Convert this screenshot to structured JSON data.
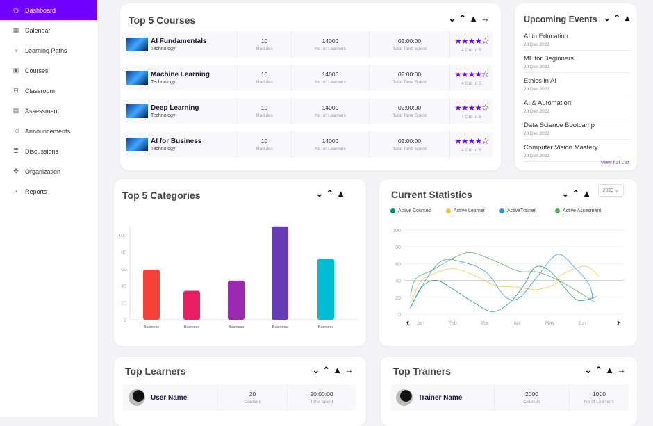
{
  "sidebar": {
    "items": [
      {
        "label": "Dashboard",
        "icon": "dashboard-icon",
        "glyph": "◷"
      },
      {
        "label": "Calendar",
        "icon": "calendar-icon",
        "glyph": "▦"
      },
      {
        "label": "Learning Paths",
        "icon": "learning-paths-icon",
        "glyph": "♆"
      },
      {
        "label": "Courses",
        "icon": "courses-icon",
        "glyph": "▣"
      },
      {
        "label": "Classroom",
        "icon": "classroom-icon",
        "glyph": "⊟"
      },
      {
        "label": "Assessment",
        "icon": "assessment-icon",
        "glyph": "▤"
      },
      {
        "label": "Announcements",
        "icon": "announcements-icon",
        "glyph": "◁"
      },
      {
        "label": "Discussions",
        "icon": "discussions-icon",
        "glyph": "≣"
      },
      {
        "label": "Organization",
        "icon": "organization-icon",
        "glyph": "✣"
      },
      {
        "label": "Reports",
        "icon": "reports-icon",
        "glyph": "◔"
      }
    ]
  },
  "controls": "⌄⌃▲",
  "arrow": "→",
  "courses": {
    "title": "Top 5 Courses",
    "rows": [
      {
        "name": "AI Fundamentals",
        "category": "Technology",
        "modules": "10",
        "modules_label": "Modules",
        "learners": "14000",
        "learners_label": "No. of Learners",
        "time": "02:00:00",
        "time_label": "Total Time Spent",
        "stars": "★★★★☆",
        "rating": "4 Out of 5"
      },
      {
        "name": "Machine Learning",
        "category": "Technology",
        "modules": "10",
        "modules_label": "Modules",
        "learners": "14000",
        "learners_label": "No. of Learners",
        "time": "02:00:00",
        "time_label": "Total Time Spent",
        "stars": "★★★★☆",
        "rating": "4 Out of 5"
      },
      {
        "name": "Deep Learning",
        "category": "Technology",
        "modules": "10",
        "modules_label": "Modules",
        "learners": "14000",
        "learners_label": "No. of Learners",
        "time": "02:00:00",
        "time_label": "Total Time Spent",
        "stars": "★★★★☆",
        "rating": "4 Out of 5"
      },
      {
        "name": "AI for Business",
        "category": "Technology",
        "modules": "10",
        "modules_label": "Modules",
        "learners": "14000",
        "learners_label": "No. of Learners",
        "time": "02:00:00",
        "time_label": "Total Time Spent",
        "stars": "★★★★☆",
        "rating": "4 Out of 5"
      }
    ]
  },
  "events": {
    "title": "Upcoming Events",
    "view_all": "View full List",
    "items": [
      {
        "title": "AI in Education",
        "date": "20 Dec 2022"
      },
      {
        "title": "ML for Beginners",
        "date": "20 Dec 2022"
      },
      {
        "title": "Ethics in AI",
        "date": "20 Dec 2022"
      },
      {
        "title": "AI & Automation",
        "date": "20 Dec 2022"
      },
      {
        "title": "Data Science Bootcamp",
        "date": "20 Dec 2022"
      },
      {
        "title": "Computer Vision Mastery",
        "date": "20 Dec 2022"
      }
    ]
  },
  "stats": {
    "title": "Current Statistics",
    "year": "2023 ⌄"
  },
  "learners": {
    "title": "Top Learners",
    "row": {
      "name": "User Name",
      "courses": "20",
      "courses_label": "Courses",
      "time": "20:00:00",
      "time_label": "Time Spent"
    }
  },
  "trainers": {
    "title": "Top Trainers",
    "row": {
      "name": "Trainer Name",
      "courses": "2000",
      "courses_label": "Courses",
      "learners": "1000",
      "learners_label": "No of Learners"
    }
  },
  "chart_data": [
    {
      "type": "bar",
      "title": "Top 5 Categories",
      "categories": [
        "Business",
        "Business",
        "Business",
        "Business",
        "Business"
      ],
      "values": [
        59,
        34,
        46,
        110,
        72
      ],
      "colors": [
        "#f44336",
        "#e91e63",
        "#9c27b0",
        "#673ab7",
        "#00bcd4"
      ],
      "yticks": [
        0,
        20,
        40,
        60,
        80,
        100
      ],
      "ylim": [
        0,
        115
      ]
    },
    {
      "type": "line",
      "title": "Current Statistics",
      "categories": [
        "Jan",
        "Feb",
        "Mar",
        "Apr",
        "May",
        "Jun"
      ],
      "yticks": [
        0,
        20,
        40,
        60,
        80,
        100
      ],
      "ylim": [
        0,
        100
      ],
      "legend": "top",
      "series": [
        {
          "name": "Active Courses",
          "color": "#0e8c7f",
          "points": [
            [
              -0.31,
              7
            ],
            [
              0.07,
              33
            ],
            [
              0.5,
              40
            ],
            [
              1.0,
              30
            ],
            [
              1.6,
              15
            ],
            [
              2.24,
              3
            ],
            [
              2.8,
              15
            ],
            [
              3.26,
              38
            ],
            [
              3.4,
              49
            ],
            [
              3.64,
              57
            ],
            [
              4.04,
              50
            ],
            [
              4.6,
              25
            ],
            [
              4.93,
              16
            ],
            [
              5.47,
              21
            ]
          ]
        },
        {
          "name": "Active Learner",
          "color": "#f5c342",
          "points": [
            [
              -0.31,
              12
            ],
            [
              0.0,
              38
            ],
            [
              0.36,
              47
            ],
            [
              1.01,
              54
            ],
            [
              1.74,
              45
            ],
            [
              2.32,
              34
            ],
            [
              3.04,
              32
            ],
            [
              3.55,
              29
            ],
            [
              4.13,
              35
            ],
            [
              4.28,
              45
            ],
            [
              5.07,
              57
            ],
            [
              5.51,
              45
            ]
          ]
        },
        {
          "name": "ActiveTrainer",
          "color": "#2196f3",
          "points": [
            [
              -0.31,
              7
            ],
            [
              0.07,
              35
            ],
            [
              0.65,
              63
            ],
            [
              1.3,
              62
            ],
            [
              2.03,
              50
            ],
            [
              2.64,
              20
            ],
            [
              3.08,
              20
            ],
            [
              3.62,
              45
            ],
            [
              4.24,
              71
            ],
            [
              4.78,
              55
            ],
            [
              5.22,
              35
            ],
            [
              5.33,
              18
            ]
          ]
        },
        {
          "name": "Active Assesment",
          "color": "#4caf50",
          "points": [
            [
              -0.31,
              21
            ],
            [
              -0.14,
              42
            ],
            [
              0.36,
              52
            ],
            [
              1.09,
              68
            ],
            [
              1.59,
              73
            ],
            [
              2.32,
              63
            ],
            [
              3.04,
              51
            ],
            [
              3.62,
              50
            ],
            [
              4.28,
              40
            ],
            [
              4.86,
              27
            ],
            [
              5.4,
              14
            ]
          ]
        }
      ]
    }
  ]
}
